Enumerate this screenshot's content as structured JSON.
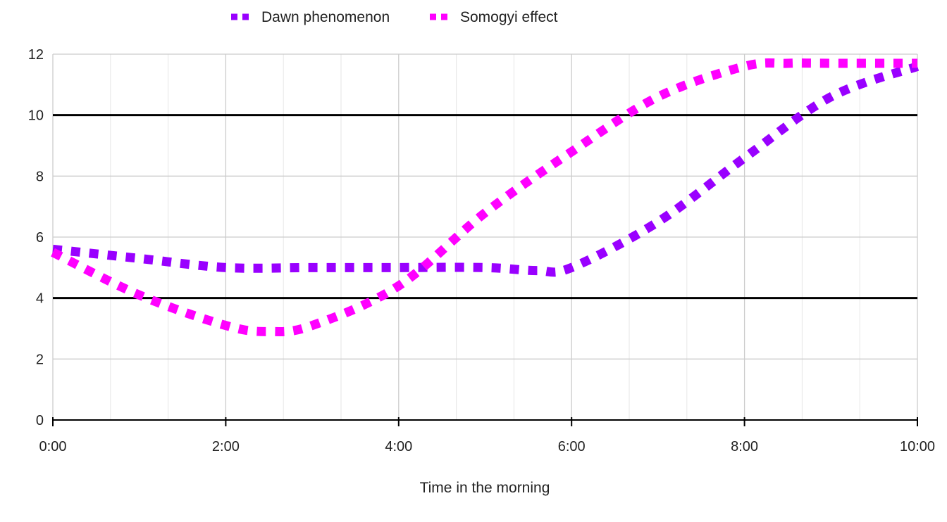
{
  "chart_data": {
    "type": "line",
    "xlabel": "Time in the morning",
    "ylabel": "",
    "x_ticks": [
      "0:00",
      "2:00",
      "4:00",
      "6:00",
      "8:00",
      "10:00"
    ],
    "y_ticks": [
      "0",
      "2",
      "4",
      "6",
      "8",
      "10",
      "12"
    ],
    "xlim": [
      0,
      10
    ],
    "ylim": [
      0,
      12
    ],
    "grid": true,
    "legend_position": "top",
    "reference_lines": [
      4,
      10
    ],
    "series": [
      {
        "name": "Dawn phenomenon",
        "color": "#9900ff",
        "style": "dotted",
        "x": [
          0,
          1,
          2,
          3,
          4,
          5,
          5.6,
          6,
          7,
          8,
          9,
          10
        ],
        "y": [
          5.6,
          5.3,
          5.0,
          5.0,
          5.0,
          5.0,
          4.9,
          5.0,
          6.5,
          8.6,
          10.6,
          11.6
        ]
      },
      {
        "name": "Somogyi effect",
        "color": "#ff00ff",
        "style": "dotted",
        "x": [
          0,
          1,
          2,
          2.5,
          3,
          4,
          5,
          6,
          7,
          8,
          8.5,
          9,
          10
        ],
        "y": [
          5.5,
          4.1,
          3.1,
          2.9,
          3.1,
          4.4,
          6.8,
          8.8,
          10.6,
          11.6,
          11.7,
          11.7,
          11.7
        ]
      }
    ]
  }
}
